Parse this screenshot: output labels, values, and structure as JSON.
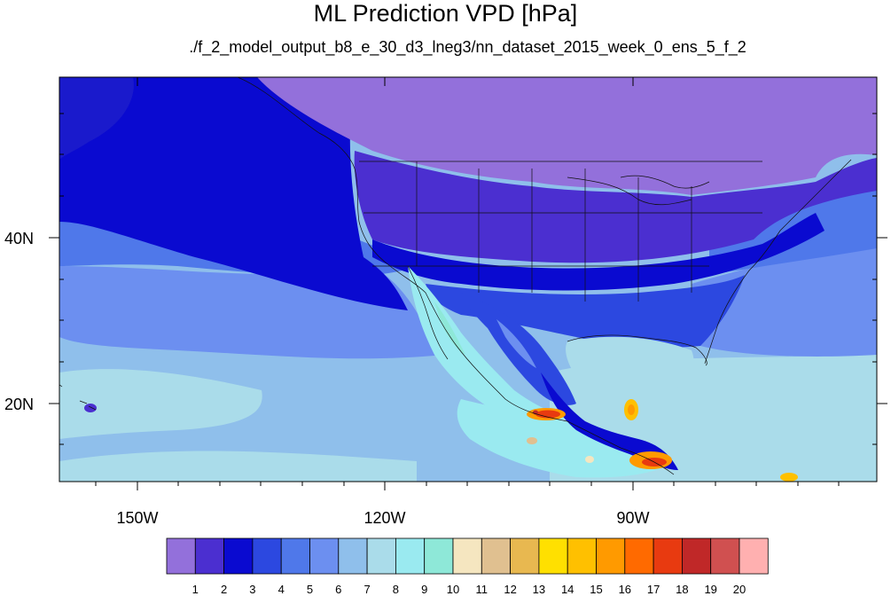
{
  "title": "ML Prediction VPD [hPa]",
  "subtitle": "./f_2_model_output_b8_e_30_d3_lneg3/nn_dataset_2015_week_0_ens_5_f_2",
  "lon_labels": [
    "150W",
    "120W",
    "90W"
  ],
  "lat_labels": [
    "40N",
    "20N"
  ],
  "colorbar": {
    "labels": [
      "1",
      "2",
      "3",
      "4",
      "5",
      "6",
      "7",
      "8",
      "9",
      "10",
      "11",
      "12",
      "13",
      "14",
      "15",
      "16",
      "17",
      "18",
      "19",
      "20"
    ],
    "colors": [
      "#9370db",
      "#4b2fd0",
      "#0a0ad0",
      "#2c48e0",
      "#4f78ea",
      "#6c8ff0",
      "#8fbfeb",
      "#aadcea",
      "#9aeaf0",
      "#8ee8d8",
      "#f5e6c0",
      "#e0c090",
      "#e8b850",
      "#ffe000",
      "#ffc000",
      "#ff9a00",
      "#ff6a00",
      "#e83a10",
      "#c02828",
      "#d05050",
      "#ffb0b0"
    ]
  }
}
